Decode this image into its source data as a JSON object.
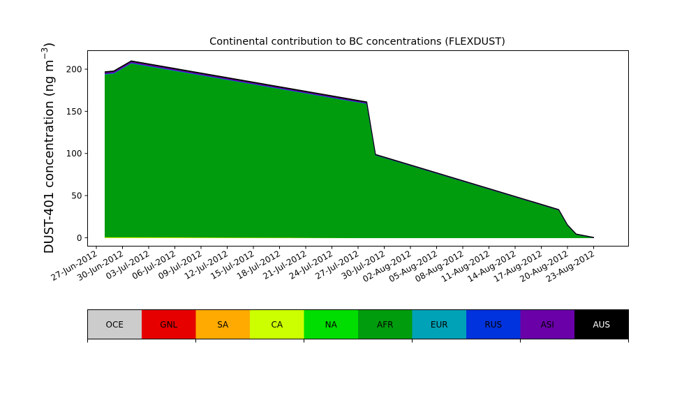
{
  "chart_data": {
    "type": "area",
    "stacked": true,
    "title": "Continental contribution to BC concentrations (FLEXDUST)",
    "ylabel_main": "DUST-401 concentration (ng m",
    "ylabel_sup": "−3",
    "ylabel_close": ")",
    "xlabel": "",
    "xlim": [
      "2012-06-26",
      "2012-08-27"
    ],
    "ylim": [
      -10,
      222
    ],
    "yticks": [
      0,
      50,
      100,
      150,
      200
    ],
    "xticks": [
      {
        "date": "2012-06-27",
        "label": "27-Jun-2012"
      },
      {
        "date": "2012-06-30",
        "label": "30-Jun-2012"
      },
      {
        "date": "2012-07-03",
        "label": "03-Jul-2012"
      },
      {
        "date": "2012-07-06",
        "label": "06-Jul-2012"
      },
      {
        "date": "2012-07-09",
        "label": "09-Jul-2012"
      },
      {
        "date": "2012-07-12",
        "label": "12-Jul-2012"
      },
      {
        "date": "2012-07-15",
        "label": "15-Jul-2012"
      },
      {
        "date": "2012-07-18",
        "label": "18-Jul-2012"
      },
      {
        "date": "2012-07-21",
        "label": "21-Jul-2012"
      },
      {
        "date": "2012-07-24",
        "label": "24-Jul-2012"
      },
      {
        "date": "2012-07-27",
        "label": "27-Jul-2012"
      },
      {
        "date": "2012-07-30",
        "label": "30-Jul-2012"
      },
      {
        "date": "2012-08-02",
        "label": "02-Aug-2012"
      },
      {
        "date": "2012-08-05",
        "label": "05-Aug-2012"
      },
      {
        "date": "2012-08-08",
        "label": "08-Aug-2012"
      },
      {
        "date": "2012-08-11",
        "label": "11-Aug-2012"
      },
      {
        "date": "2012-08-14",
        "label": "14-Aug-2012"
      },
      {
        "date": "2012-08-17",
        "label": "17-Aug-2012"
      },
      {
        "date": "2012-08-20",
        "label": "20-Aug-2012"
      },
      {
        "date": "2012-08-23",
        "label": "23-Aug-2012"
      }
    ],
    "x": [
      "2012-06-28",
      "2012-06-29",
      "2012-07-01",
      "2012-07-28",
      "2012-07-29",
      "2012-08-19",
      "2012-08-20",
      "2012-08-21",
      "2012-08-23"
    ],
    "series": [
      {
        "name": "OCE",
        "color": "#cccccc",
        "values": [
          0,
          0,
          0,
          0,
          0,
          0,
          0,
          0,
          0
        ]
      },
      {
        "name": "GNL",
        "color": "#e60000",
        "values": [
          0,
          0,
          0,
          0,
          0,
          0,
          0,
          0,
          0
        ]
      },
      {
        "name": "SA",
        "color": "#ffaa00",
        "values": [
          0,
          0,
          0,
          0,
          0,
          0,
          0,
          0,
          0
        ]
      },
      {
        "name": "CA",
        "color": "#ccff00",
        "values": [
          1,
          1,
          1,
          0,
          0,
          0,
          0,
          0,
          0
        ]
      },
      {
        "name": "NA",
        "color": "#00dd00",
        "values": [
          0,
          0,
          0,
          0,
          0,
          0,
          0,
          0,
          0
        ]
      },
      {
        "name": "AFR",
        "color": "#009c0d",
        "values": [
          193,
          194,
          206,
          159,
          98,
          33,
          15,
          4,
          0
        ]
      },
      {
        "name": "EUR",
        "color": "#00a2b7",
        "values": [
          0.5,
          0.5,
          0.5,
          0.3,
          0.2,
          0,
          0,
          0,
          0
        ]
      },
      {
        "name": "RUS",
        "color": "#0033dd",
        "values": [
          0.3,
          0.3,
          0.3,
          0.3,
          0.1,
          0,
          0,
          0,
          0
        ]
      },
      {
        "name": "ASI",
        "color": "#6a00a8",
        "values": [
          1.5,
          1.5,
          1.5,
          1.0,
          0.3,
          0.3,
          0.2,
          0.2,
          0.2
        ]
      },
      {
        "name": "AUS",
        "color": "#000000",
        "values": [
          0.7,
          0.7,
          0.7,
          0.7,
          0.4,
          0.3,
          0.3,
          0.3,
          0.3
        ]
      }
    ],
    "legend_placement": "bottom"
  }
}
